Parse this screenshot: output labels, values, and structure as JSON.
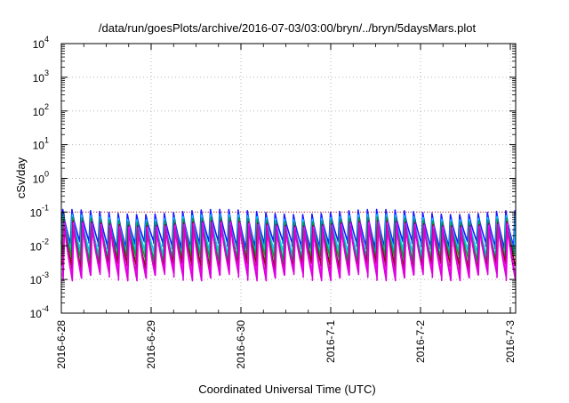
{
  "chart_data": {
    "type": "line",
    "title": "/data/run/goesPlots/archive/2016-07-03/03:00/bryn/../bryn/5daysMars.plot",
    "xlabel": "Coordinated Universal Time (UTC)",
    "ylabel": "cSv/day",
    "yscale": "log",
    "ylim": [
      0.0001,
      10000
    ],
    "xlim_days": [
      0,
      5.2
    ],
    "x_ticks": [
      {
        "label": "2016-6-28",
        "day": 0
      },
      {
        "label": "2016-6-29",
        "day": 1
      },
      {
        "label": "2016-6-30",
        "day": 2
      },
      {
        "label": "2016-7-1",
        "day": 3
      },
      {
        "label": "2016-7-2",
        "day": 4
      },
      {
        "label": "2016-7-3",
        "day": 5
      }
    ],
    "y_ticks": [
      {
        "base": "10",
        "exp": "-4",
        "value": 0.0001
      },
      {
        "base": "10",
        "exp": "-3",
        "value": 0.001
      },
      {
        "base": "10",
        "exp": "-2",
        "value": 0.01
      },
      {
        "base": "10",
        "exp": "-1",
        "value": 0.1
      },
      {
        "base": "10",
        "exp": "0",
        "value": 1
      },
      {
        "base": "10",
        "exp": "1",
        "value": 10
      },
      {
        "base": "10",
        "exp": "2",
        "value": 100
      },
      {
        "base": "10",
        "exp": "3",
        "value": 1000
      },
      {
        "base": "10",
        "exp": "4",
        "value": 10000
      }
    ],
    "grid": true,
    "reference_line": {
      "value": 0.1,
      "color": "#cc2222"
    },
    "cycle_period_days": 0.1028,
    "series": [
      {
        "color": "#1a1aff",
        "peak": 0.12,
        "trough": 0.011,
        "phase": 0.0
      },
      {
        "color": "#00c8ff",
        "peak": 0.085,
        "trough": 0.006,
        "phase": 0.004
      },
      {
        "color": "#00a040",
        "peak": 0.07,
        "trough": 0.004,
        "phase": 0.008
      },
      {
        "color": "#8b0000",
        "peak": 0.055,
        "trough": 0.0025,
        "phase": 0.012
      },
      {
        "color": "#ff00ff",
        "peak": 0.05,
        "trough": 0.0015,
        "phase": 0.016
      },
      {
        "color": "#dd00dd",
        "peak": 0.04,
        "trough": 0.0012,
        "phase": 0.02
      }
    ]
  }
}
